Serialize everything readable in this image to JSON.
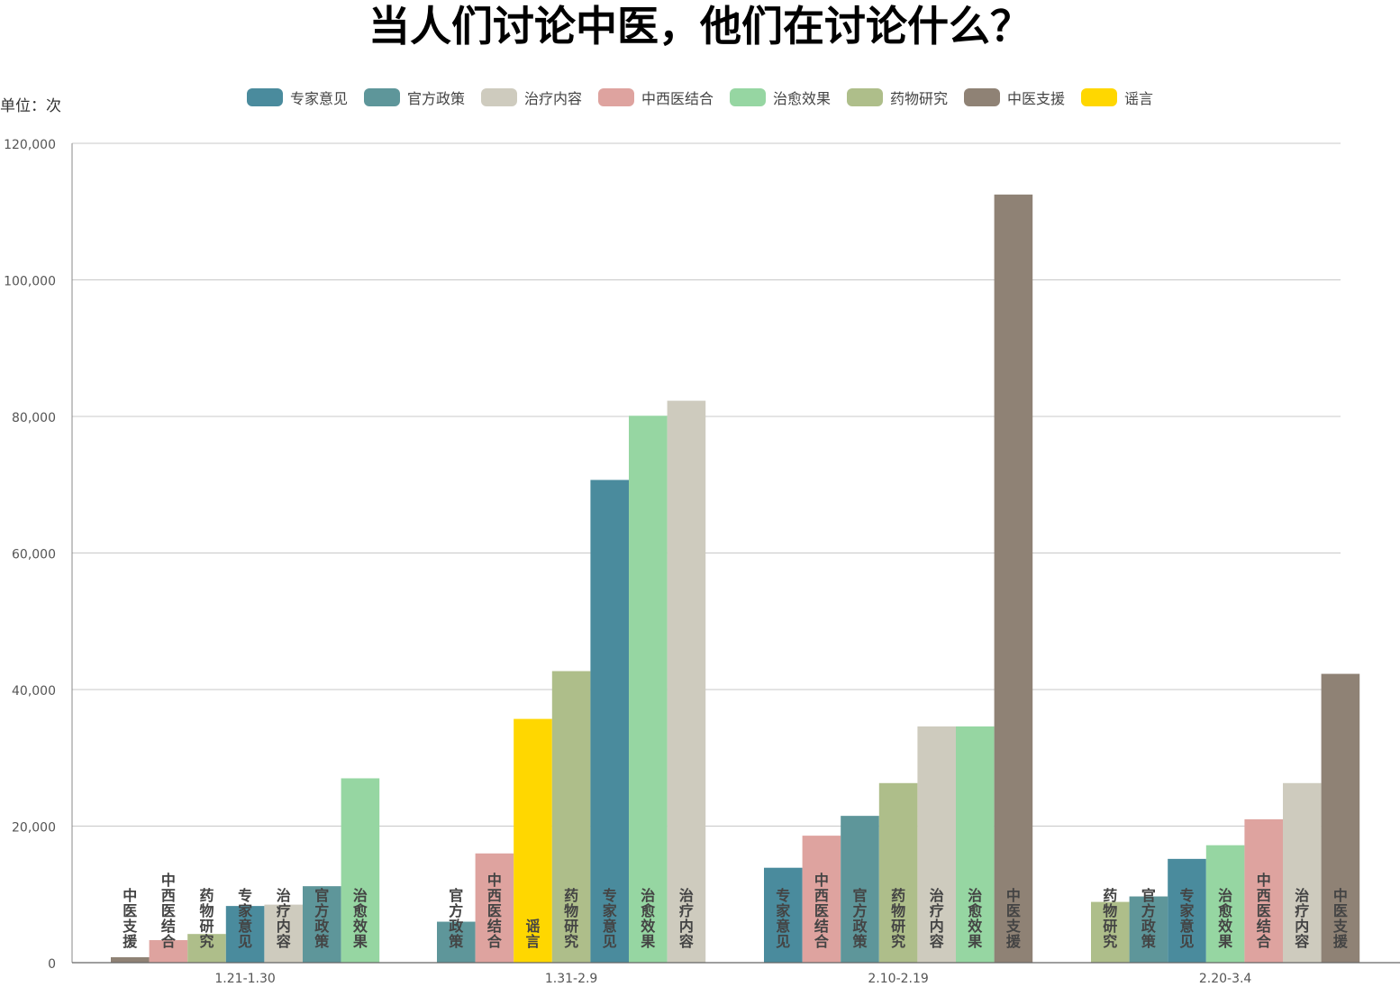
{
  "title": "当人们讨论中医，他们在讨论什么？",
  "unit_label": "单位：次",
  "chart_data": {
    "type": "bar",
    "title": "当人们讨论中医，他们在讨论什么？",
    "ylabel": "单位：次",
    "xlabel": "",
    "ylim": [
      0,
      120000
    ],
    "yticks": [
      "0",
      "20,000",
      "40,000",
      "60,000",
      "80,000",
      "100,000",
      "120,000"
    ],
    "ytick_values": [
      0,
      20000,
      40000,
      60000,
      80000,
      100000,
      120000
    ],
    "grid": true,
    "legend_position": "top",
    "legend": [
      {
        "name": "专家意见",
        "color": "#4a8b9d"
      },
      {
        "name": "官方政策",
        "color": "#5e969a"
      },
      {
        "name": "治疗内容",
        "color": "#cecbbe"
      },
      {
        "name": "中西医结合",
        "color": "#dea39f"
      },
      {
        "name": "治愈效果",
        "color": "#96d6a2"
      },
      {
        "name": "药物研究",
        "color": "#aebe8a"
      },
      {
        "name": "中医支援",
        "color": "#8f8275"
      },
      {
        "name": "谣言",
        "color": "#ffd700"
      }
    ],
    "categories": [
      "1.21-1.30",
      "1.31-2.9",
      "2.10-2.19",
      "2.20-3.4"
    ],
    "groups": [
      {
        "category": "1.21-1.30",
        "bars": [
          {
            "name": "中医支援",
            "value": 800,
            "color": "#8f8275"
          },
          {
            "name": "中西医结合",
            "value": 3300,
            "color": "#dea39f"
          },
          {
            "name": "药物研究",
            "value": 4200,
            "color": "#aebe8a"
          },
          {
            "name": "专家意见",
            "value": 8300,
            "color": "#4a8b9d"
          },
          {
            "name": "治疗内容",
            "value": 8500,
            "color": "#cecbbe"
          },
          {
            "name": "官方政策",
            "value": 11200,
            "color": "#5e969a"
          },
          {
            "name": "治愈效果",
            "value": 27000,
            "color": "#96d6a2"
          }
        ]
      },
      {
        "category": "1.31-2.9",
        "bars": [
          {
            "name": "官方政策",
            "value": 6000,
            "color": "#5e969a"
          },
          {
            "name": "中西医结合",
            "value": 16000,
            "color": "#dea39f"
          },
          {
            "name": "谣言",
            "value": 35700,
            "color": "#ffd700"
          },
          {
            "name": "药物研究",
            "value": 42700,
            "color": "#aebe8a"
          },
          {
            "name": "专家意见",
            "value": 70700,
            "color": "#4a8b9d"
          },
          {
            "name": "治愈效果",
            "value": 80100,
            "color": "#96d6a2"
          },
          {
            "name": "治疗内容",
            "value": 82300,
            "color": "#cecbbe"
          }
        ]
      },
      {
        "category": "2.10-2.19",
        "bars": [
          {
            "name": "专家意见",
            "value": 13900,
            "color": "#4a8b9d"
          },
          {
            "name": "中西医结合",
            "value": 18600,
            "color": "#dea39f"
          },
          {
            "name": "官方政策",
            "value": 21500,
            "color": "#5e969a"
          },
          {
            "name": "药物研究",
            "value": 26300,
            "color": "#aebe8a"
          },
          {
            "name": "治疗内容",
            "value": 34600,
            "color": "#cecbbe"
          },
          {
            "name": "治愈效果",
            "value": 34600,
            "color": "#96d6a2"
          },
          {
            "name": "中医支援",
            "value": 112500,
            "color": "#8f8275"
          }
        ]
      },
      {
        "category": "2.20-3.4",
        "bars": [
          {
            "name": "药物研究",
            "value": 8900,
            "color": "#aebe8a"
          },
          {
            "name": "官方政策",
            "value": 9700,
            "color": "#5e969a"
          },
          {
            "name": "专家意见",
            "value": 15200,
            "color": "#4a8b9d"
          },
          {
            "name": "治愈效果",
            "value": 17200,
            "color": "#96d6a2"
          },
          {
            "name": "中西医结合",
            "value": 21000,
            "color": "#dea39f"
          },
          {
            "name": "治疗内容",
            "value": 26300,
            "color": "#cecbbe"
          },
          {
            "name": "中医支援",
            "value": 42300,
            "color": "#8f8275"
          }
        ]
      }
    ]
  }
}
